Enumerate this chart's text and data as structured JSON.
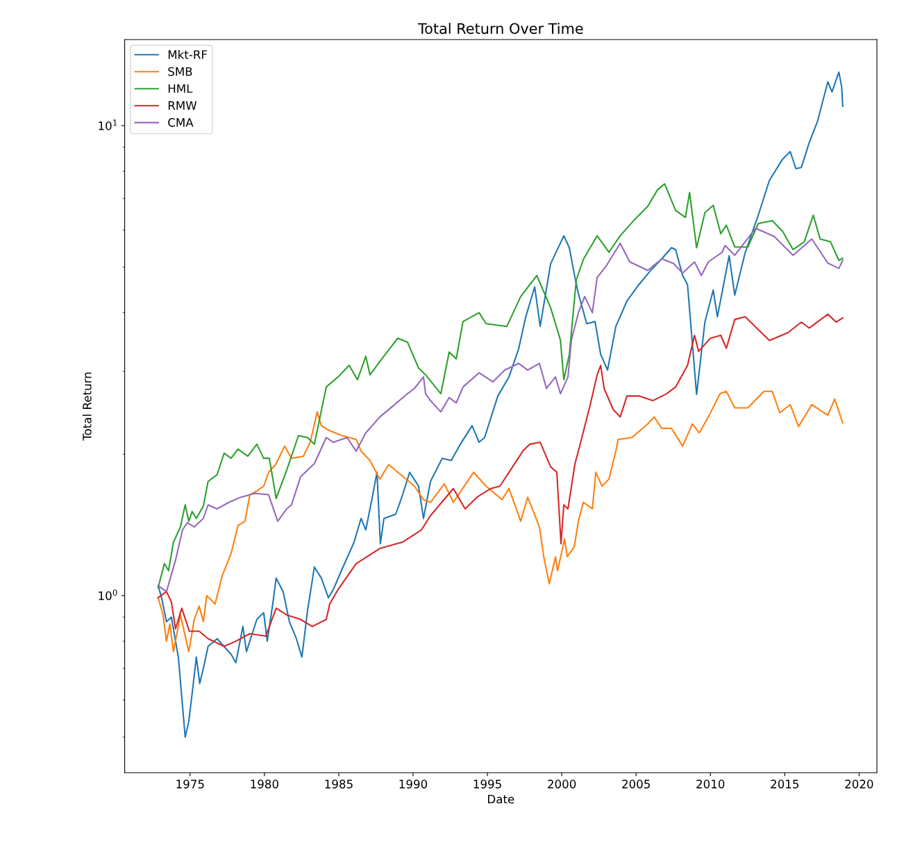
{
  "chart_data": {
    "type": "line",
    "title": "Total Return Over Time",
    "xlabel": "Date",
    "ylabel": "Total Return",
    "log": "y",
    "legend": "top left",
    "grid": false,
    "line_style": "solid",
    "marker": "none",
    "xlim": [
      1970.6,
      2021.2
    ],
    "xticks": [
      1975,
      1980,
      1985,
      1990,
      1995,
      2000,
      2005,
      2010,
      2015,
      2020
    ],
    "ylim": [
      0.42,
      15.25
    ],
    "yticks": [
      {
        "value": 1,
        "label": "10$^{0}$"
      },
      {
        "value": 10,
        "label": "10$^{1}$"
      }
    ],
    "series": [
      {
        "name": "Mkt-RF",
        "color": "#1f77b4",
        "x": [
          1972.85,
          1973.08,
          1973.41,
          1973.74,
          1974.21,
          1974.67,
          1974.91,
          1975.14,
          1975.42,
          1975.65,
          1975.98,
          1976.21,
          1976.82,
          1977.76,
          1978.08,
          1978.55,
          1978.79,
          1979.49,
          1979.95,
          1980.19,
          1980.56,
          1980.79,
          1981.26,
          1981.68,
          1982.15,
          1982.52,
          1982.9,
          1983.36,
          1983.83,
          1984.3,
          1984.63,
          1985.23,
          1986.03,
          1986.5,
          1986.82,
          1987.29,
          1987.57,
          1987.8,
          1988.04,
          1988.83,
          1989.3,
          1989.77,
          1990.37,
          1990.7,
          1991.17,
          1991.96,
          1992.57,
          1993.18,
          1993.97,
          1994.44,
          1994.81,
          1995.7,
          1996.45,
          1997.1,
          1997.57,
          1998.18,
          1998.55,
          1999.25,
          2000.14,
          2000.51,
          2000.89,
          2001.12,
          2001.68,
          2002.24,
          2002.62,
          2003.08,
          2003.64,
          2004.39,
          2005.19,
          2005.98,
          2006.73,
          2007.38,
          2007.66,
          2008.13,
          2008.46,
          2009.07,
          2009.63,
          2010.19,
          2010.47,
          2011.26,
          2011.64,
          2012.34,
          2013.22,
          2013.97,
          2014.86,
          2015.37,
          2015.75,
          2016.12,
          2016.64,
          2017.2,
          2017.9,
          2018.18,
          2018.64,
          2018.83,
          2018.9
        ],
        "values": [
          1.05,
          0.99,
          0.88,
          0.9,
          0.74,
          0.5,
          0.54,
          0.62,
          0.74,
          0.65,
          0.72,
          0.78,
          0.81,
          0.75,
          0.72,
          0.86,
          0.76,
          0.89,
          0.92,
          0.8,
          0.96,
          1.09,
          1.02,
          0.88,
          0.81,
          0.74,
          0.93,
          1.15,
          1.09,
          0.99,
          1.03,
          1.14,
          1.3,
          1.46,
          1.38,
          1.64,
          1.83,
          1.29,
          1.46,
          1.49,
          1.64,
          1.83,
          1.71,
          1.46,
          1.75,
          1.96,
          1.94,
          2.1,
          2.3,
          2.12,
          2.17,
          2.66,
          2.92,
          3.35,
          3.91,
          4.54,
          3.74,
          5.08,
          5.83,
          5.5,
          4.75,
          4.39,
          3.79,
          3.83,
          3.26,
          3.02,
          3.74,
          4.24,
          4.59,
          4.92,
          5.21,
          5.5,
          5.45,
          4.8,
          4.59,
          2.68,
          3.82,
          4.47,
          3.92,
          5.29,
          4.36,
          5.37,
          6.45,
          7.65,
          8.49,
          8.81,
          8.1,
          8.15,
          9.19,
          10.2,
          12.4,
          11.8,
          13.0,
          12.1,
          11.0
        ]
      },
      {
        "name": "SMB",
        "color": "#ff7f0e",
        "x": [
          1972.85,
          1973.18,
          1973.41,
          1973.64,
          1973.88,
          1974.35,
          1974.91,
          1975.28,
          1975.61,
          1975.89,
          1976.12,
          1976.68,
          1977.15,
          1977.76,
          1978.22,
          1978.69,
          1979.02,
          1979.49,
          1979.95,
          1980.28,
          1980.75,
          1981.36,
          1981.82,
          1982.62,
          1983.08,
          1983.55,
          1983.83,
          1984.3,
          1985.23,
          1986.17,
          1986.5,
          1987.1,
          1987.76,
          1988.36,
          1989.16,
          1990.09,
          1990.7,
          1991.17,
          1992.1,
          1992.71,
          1994.07,
          1994.91,
          1995.98,
          1996.45,
          1997.24,
          1997.71,
          1998.5,
          1998.79,
          1999.16,
          1999.58,
          1999.72,
          2000.19,
          2000.37,
          2000.84,
          2001.12,
          2001.45,
          2002.06,
          2002.29,
          2002.71,
          2003.18,
          2003.64,
          2003.79,
          2004.72,
          2005.79,
          2006.21,
          2006.73,
          2007.38,
          2008.13,
          2008.79,
          2009.25,
          2009.86,
          2010.65,
          2011.07,
          2011.64,
          2012.52,
          2013.6,
          2014.16,
          2014.67,
          2015.37,
          2015.93,
          2016.82,
          2017.9,
          2018.36,
          2018.9
        ],
        "values": [
          0.99,
          0.91,
          0.8,
          0.87,
          0.76,
          0.91,
          0.76,
          0.89,
          0.95,
          0.88,
          1.0,
          0.96,
          1.1,
          1.23,
          1.41,
          1.44,
          1.64,
          1.67,
          1.71,
          1.83,
          1.9,
          2.08,
          1.96,
          1.98,
          2.12,
          2.46,
          2.3,
          2.25,
          2.19,
          2.15,
          2.03,
          1.94,
          1.77,
          1.9,
          1.81,
          1.71,
          1.6,
          1.58,
          1.73,
          1.58,
          1.83,
          1.71,
          1.6,
          1.69,
          1.44,
          1.62,
          1.4,
          1.21,
          1.06,
          1.21,
          1.13,
          1.32,
          1.21,
          1.27,
          1.44,
          1.58,
          1.53,
          1.83,
          1.71,
          1.77,
          2.03,
          2.15,
          2.17,
          2.32,
          2.4,
          2.27,
          2.27,
          2.08,
          2.32,
          2.22,
          2.4,
          2.69,
          2.72,
          2.51,
          2.51,
          2.72,
          2.72,
          2.45,
          2.55,
          2.29,
          2.55,
          2.42,
          2.62,
          2.33
        ]
      },
      {
        "name": "HML",
        "color": "#2ca02c",
        "x": [
          1972.85,
          1973.27,
          1973.55,
          1973.88,
          1974.35,
          1974.67,
          1974.91,
          1975.14,
          1975.42,
          1975.89,
          1976.21,
          1976.82,
          1977.29,
          1977.76,
          1978.22,
          1978.88,
          1979.49,
          1979.95,
          1980.33,
          1980.79,
          1981.5,
          1982.29,
          1982.9,
          1983.36,
          1984.16,
          1984.95,
          1985.7,
          1986.26,
          1986.82,
          1987.1,
          1987.9,
          1988.97,
          1989.63,
          1990.37,
          1990.84,
          1991.87,
          1992.43,
          1992.9,
          1993.36,
          1994.44,
          1994.91,
          1996.31,
          1997.24,
          1998.32,
          1999.25,
          1999.91,
          2000.14,
          2000.51,
          2000.98,
          2001.45,
          2002.38,
          2003.18,
          2003.93,
          2004.86,
          2005.79,
          2006.45,
          2006.92,
          2007.66,
          2008.32,
          2008.6,
          2009.07,
          2009.63,
          2010.19,
          2010.7,
          2011.07,
          2011.64,
          2012.52,
          2013.22,
          2014.16,
          2014.86,
          2015.56,
          2016.31,
          2016.92,
          2017.38,
          2018.08,
          2018.64,
          2018.9
        ],
        "values": [
          1.04,
          1.17,
          1.13,
          1.3,
          1.4,
          1.56,
          1.44,
          1.51,
          1.46,
          1.55,
          1.75,
          1.81,
          2.01,
          1.96,
          2.05,
          1.98,
          2.1,
          1.96,
          1.96,
          1.61,
          1.85,
          2.19,
          2.17,
          2.1,
          2.78,
          2.92,
          3.09,
          2.88,
          3.23,
          2.95,
          3.19,
          3.53,
          3.46,
          3.05,
          2.95,
          2.69,
          3.3,
          3.19,
          3.83,
          4.0,
          3.79,
          3.74,
          4.33,
          4.8,
          4.1,
          3.5,
          2.88,
          3.26,
          4.7,
          5.19,
          5.83,
          5.38,
          5.83,
          6.29,
          6.74,
          7.31,
          7.52,
          6.6,
          6.38,
          7.21,
          5.5,
          6.53,
          6.77,
          5.89,
          6.14,
          5.52,
          5.52,
          6.19,
          6.28,
          5.96,
          5.45,
          5.66,
          6.45,
          5.74,
          5.66,
          5.17,
          5.22
        ]
      },
      {
        "name": "RMW",
        "color": "#d62728",
        "x": [
          1972.85,
          1973.41,
          1973.74,
          1974.02,
          1974.44,
          1974.95,
          1975.61,
          1976.21,
          1977.29,
          1978.08,
          1979.02,
          1980.09,
          1980.79,
          1981.5,
          1982.43,
          1983.22,
          1984.16,
          1984.39,
          1984.95,
          1986.17,
          1987.76,
          1989.3,
          1990.56,
          1991.17,
          1991.78,
          1992.71,
          1993.5,
          1994.3,
          1995.23,
          1995.84,
          1996.45,
          1997.38,
          1997.85,
          1998.55,
          1999.25,
          1999.67,
          1999.95,
          2000.14,
          2000.42,
          2000.89,
          2001.12,
          2001.92,
          2002.38,
          2002.62,
          2002.85,
          2003.46,
          2003.93,
          2004.39,
          2005.19,
          2006.12,
          2007.06,
          2007.66,
          2008.46,
          2008.93,
          2009.21,
          2010.0,
          2010.7,
          2011.07,
          2011.64,
          2012.34,
          2013.97,
          2015.23,
          2016.12,
          2016.64,
          2017.9,
          2018.46,
          2018.9
        ],
        "values": [
          0.99,
          1.02,
          0.97,
          0.85,
          0.94,
          0.84,
          0.84,
          0.81,
          0.78,
          0.8,
          0.83,
          0.82,
          0.94,
          0.91,
          0.89,
          0.86,
          0.89,
          0.96,
          1.03,
          1.17,
          1.26,
          1.3,
          1.38,
          1.48,
          1.56,
          1.69,
          1.53,
          1.62,
          1.69,
          1.71,
          1.83,
          2.03,
          2.1,
          2.12,
          1.88,
          1.83,
          1.29,
          1.56,
          1.53,
          1.91,
          2.03,
          2.55,
          2.95,
          3.09,
          2.76,
          2.49,
          2.4,
          2.66,
          2.66,
          2.6,
          2.69,
          2.78,
          3.09,
          3.58,
          3.31,
          3.53,
          3.58,
          3.36,
          3.87,
          3.92,
          3.49,
          3.63,
          3.82,
          3.71,
          3.97,
          3.82,
          3.9
        ]
      },
      {
        "name": "CMA",
        "color": "#9467bd",
        "x": [
          1972.85,
          1973.41,
          1974.02,
          1974.49,
          1974.81,
          1975.28,
          1975.89,
          1976.21,
          1976.82,
          1977.62,
          1978.41,
          1979.35,
          1980.28,
          1980.89,
          1981.5,
          1981.82,
          1982.43,
          1983.36,
          1984.16,
          1984.63,
          1985.56,
          1986.17,
          1986.82,
          1987.76,
          1988.5,
          1989.63,
          1990.09,
          1990.7,
          1990.84,
          1991.17,
          1991.87,
          1992.43,
          1992.9,
          1993.36,
          1994.44,
          1995.37,
          1996.17,
          1997.1,
          1997.71,
          1998.5,
          1998.97,
          1999.58,
          1999.91,
          2000.42,
          2000.65,
          2001.12,
          2001.54,
          2002.06,
          2002.38,
          2002.99,
          2003.93,
          2004.58,
          2005.79,
          2006.73,
          2007.52,
          2008.13,
          2008.93,
          2009.39,
          2009.86,
          2010.79,
          2010.98,
          2011.64,
          2013.04,
          2014.3,
          2015.56,
          2016.82,
          2017.9,
          2018.64,
          2018.9
        ],
        "values": [
          1.05,
          1.02,
          1.19,
          1.38,
          1.43,
          1.4,
          1.46,
          1.56,
          1.53,
          1.58,
          1.62,
          1.65,
          1.64,
          1.44,
          1.53,
          1.56,
          1.79,
          1.91,
          2.17,
          2.12,
          2.17,
          2.03,
          2.22,
          2.4,
          2.51,
          2.69,
          2.76,
          2.92,
          2.69,
          2.6,
          2.46,
          2.64,
          2.57,
          2.78,
          2.98,
          2.85,
          3.02,
          3.12,
          3.02,
          3.12,
          2.76,
          2.92,
          2.69,
          2.92,
          3.5,
          4.0,
          4.33,
          4.0,
          4.75,
          5.03,
          5.62,
          5.13,
          4.92,
          5.21,
          5.09,
          4.86,
          5.13,
          4.8,
          5.13,
          5.38,
          5.56,
          5.3,
          6.05,
          5.81,
          5.3,
          5.74,
          5.1,
          4.97,
          5.17
        ]
      }
    ]
  }
}
